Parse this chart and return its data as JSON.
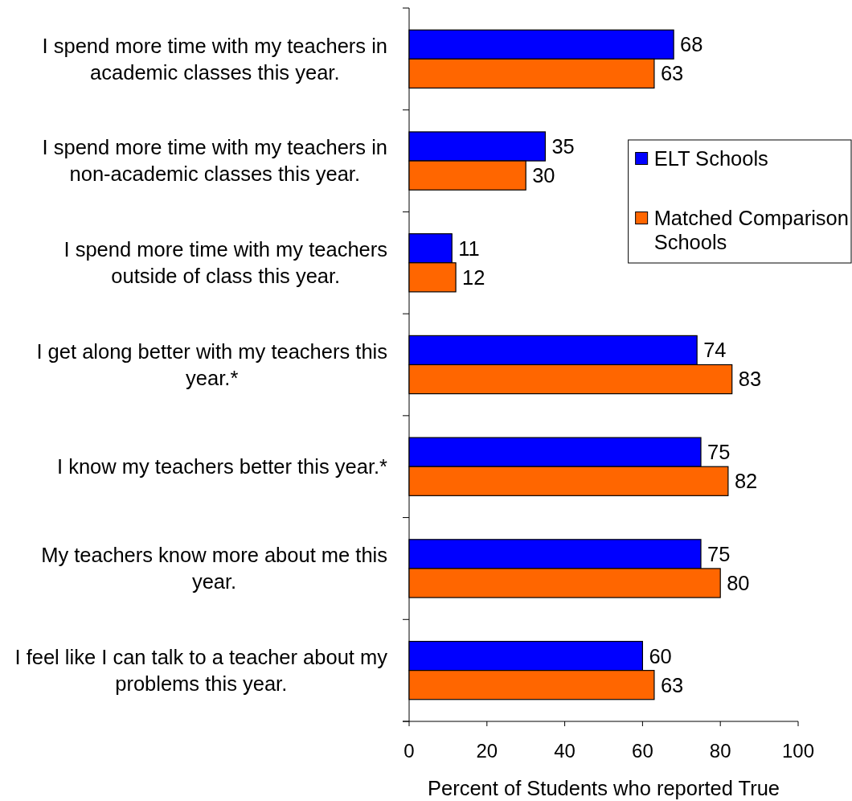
{
  "chart_data": {
    "type": "bar",
    "orientation": "horizontal",
    "categories": [
      "I spend more time with my teachers in academic classes this year.",
      "I spend more time with my teachers in non-academic classes this year.",
      "I spend more time with my teachers outside of class this year.",
      "I get along better with my teachers this year.*",
      "I know my teachers better this year.*",
      "My teachers know more about me this year.",
      "I feel like I can talk to a teacher about my problems this year."
    ],
    "series": [
      {
        "name": "ELT Schools",
        "color": "#0000ff",
        "values": [
          68,
          35,
          11,
          74,
          75,
          75,
          60
        ]
      },
      {
        "name": "Matched Comparison Schools",
        "color": "#ff6600",
        "values": [
          63,
          30,
          12,
          83,
          82,
          80,
          63
        ]
      }
    ],
    "xlabel": "Percent of Students who reported True",
    "xlim": [
      0,
      100
    ],
    "xticks": [
      0,
      20,
      40,
      60,
      80,
      100
    ],
    "data_labels": true,
    "legend": "right"
  }
}
